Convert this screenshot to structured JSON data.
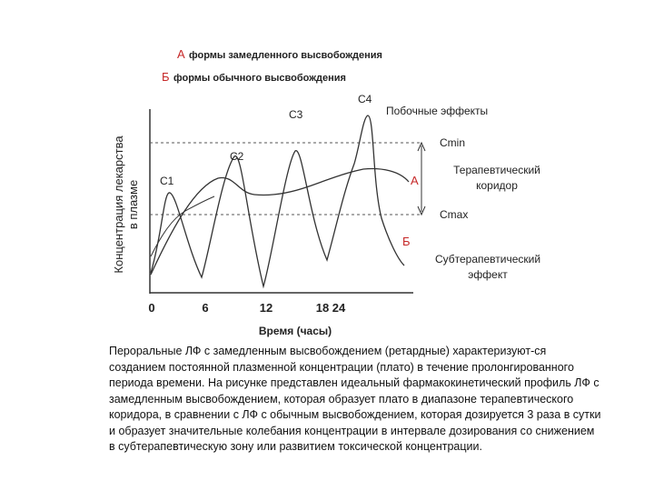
{
  "legend": [
    {
      "letter": "А",
      "text": "формы замедленного высвобождения"
    },
    {
      "letter": "Б",
      "text": "формы обычного высвобождения"
    }
  ],
  "peaks": [
    "C1",
    "C2",
    "C3",
    "C4"
  ],
  "labels": {
    "side_effects": "Побочные эффекты",
    "cmin": "Cmin",
    "corridor": [
      "Терапевтический",
      "коридор"
    ],
    "cmax": "Cmax",
    "curve_a": "А",
    "curve_b": "Б",
    "subtherapeutic": [
      "Субтерапевтический",
      "эффект"
    ]
  },
  "y_axis_label": [
    "Концентрация лекарства",
    "в плазме"
  ],
  "x_axis_label": "Время (часы)",
  "x_ticks": [
    "0",
    "6",
    "12",
    "18",
    "24"
  ],
  "paragraph": [
    "Пероральные ЛФ с замедленным высвобождением (ретардные) характеризуют-ся",
    "созданием постоянной плазменной концентрации (плато) в течение пролонгированного",
    "периода времени. На рисунке  представлен идеальный фармакокинетический профиль ЛФ с",
    "замедленным высвобождением, которая образует плато в диапазоне терапевтического",
    "коридора, в сравнении с ЛФ с обычным высвобождением, которая дозируется 3 раза в сутки",
    "и образует значительные колебания концентрации в интервале дозирования со снижением",
    "в субтерапевтическую зону или развитием токсической концентрации."
  ]
}
